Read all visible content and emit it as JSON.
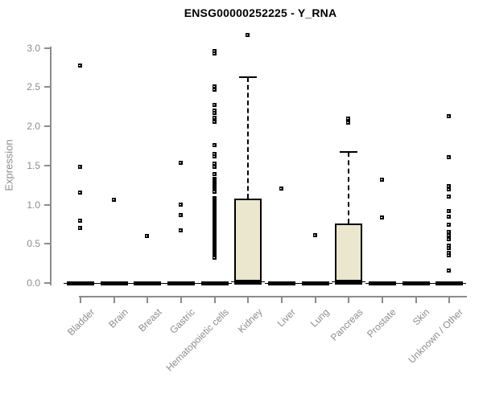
{
  "chart_data": {
    "type": "boxplot",
    "title": "ENSG00000252225 - Y_RNA",
    "ylabel": "Expression",
    "xlabel": "",
    "ylim": [
      0.0,
      3.2
    ],
    "yticks": [
      "0.0",
      "0.5",
      "1.0",
      "1.5",
      "2.0",
      "2.5",
      "3.0"
    ],
    "grid": false,
    "legend": "none",
    "colors": {
      "box_fill": "#EBE7CE",
      "box_border": "#000000",
      "point": "#000000",
      "axis": "#8C8C8C",
      "title": "#000000"
    },
    "series": [
      {
        "category": "Bladder",
        "median": 0.0,
        "points": [
          2.78,
          1.49,
          1.16,
          0.8,
          0.71
        ]
      },
      {
        "category": "Brain",
        "median": 0.0,
        "points": [
          1.07
        ]
      },
      {
        "category": "Breast",
        "median": 0.0,
        "points": [
          0.61
        ]
      },
      {
        "category": "Gastric",
        "median": 0.0,
        "points": [
          1.54,
          1.01,
          0.87,
          0.68
        ]
      },
      {
        "category": "Hematopoietic cells",
        "median": 0.0,
        "points": [
          2.96,
          2.93,
          2.51,
          2.47,
          2.28,
          2.21,
          2.17,
          2.11,
          2.06,
          1.76,
          1.65,
          1.62,
          1.53,
          1.49,
          1.39,
          1.33,
          1.31,
          1.29,
          1.27,
          1.25,
          1.23,
          1.21,
          1.19,
          1.17,
          1.09,
          1.07,
          1.05,
          1.03,
          1.01,
          0.99,
          0.97,
          0.95,
          0.93,
          0.91,
          0.89,
          0.87,
          0.85,
          0.83,
          0.81,
          0.79,
          0.77,
          0.75,
          0.73,
          0.71,
          0.69,
          0.67,
          0.65,
          0.63,
          0.61,
          0.59,
          0.57,
          0.55,
          0.53,
          0.51,
          0.49,
          0.47,
          0.45,
          0.43,
          0.41,
          0.39,
          0.37,
          0.35,
          0.33
        ]
      },
      {
        "category": "Kidney",
        "median": 0.02,
        "q1": 0.0,
        "q3": 1.08,
        "whisker_high": 2.63,
        "points": [
          3.17
        ]
      },
      {
        "category": "Liver",
        "median": 0.0,
        "points": [
          1.21
        ]
      },
      {
        "category": "Lung",
        "median": 0.0,
        "points": [
          0.62
        ]
      },
      {
        "category": "Pancreas",
        "median": 0.02,
        "q1": 0.0,
        "q3": 0.76,
        "whisker_high": 1.67,
        "points": [
          2.1,
          2.05
        ]
      },
      {
        "category": "Prostate",
        "median": 0.0,
        "points": [
          1.32,
          0.84
        ]
      },
      {
        "category": "Skin",
        "median": 0.0,
        "points": []
      },
      {
        "category": "Unknown / Other",
        "median": 0.0,
        "points": [
          2.13,
          1.61,
          1.24,
          1.2,
          1.11,
          0.92,
          0.85,
          0.75,
          0.66,
          0.62,
          0.56,
          0.48,
          0.45,
          0.39,
          0.36,
          0.16
        ]
      }
    ]
  }
}
